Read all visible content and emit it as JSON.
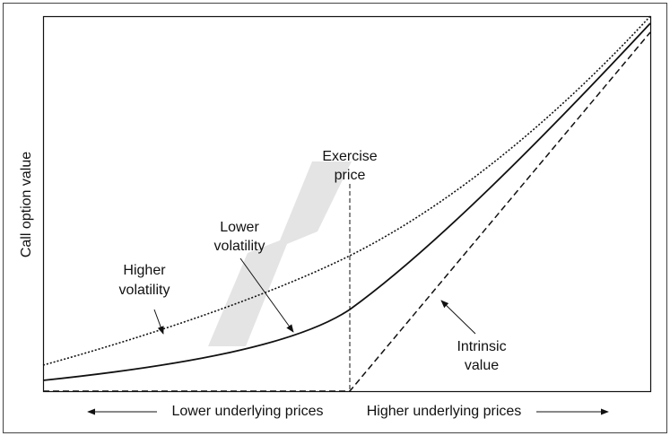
{
  "y_axis_label": "Call option value",
  "x_axis_labels": {
    "left": "Lower underlying prices",
    "right": "Higher underlying prices"
  },
  "annotations": {
    "exercise_price": [
      "Exercise",
      "price"
    ],
    "lower_volatility": [
      "Lower",
      "volatility"
    ],
    "higher_volatility": [
      "Higher",
      "volatility"
    ],
    "intrinsic_value": [
      "Intrinsic",
      "value"
    ]
  }
}
